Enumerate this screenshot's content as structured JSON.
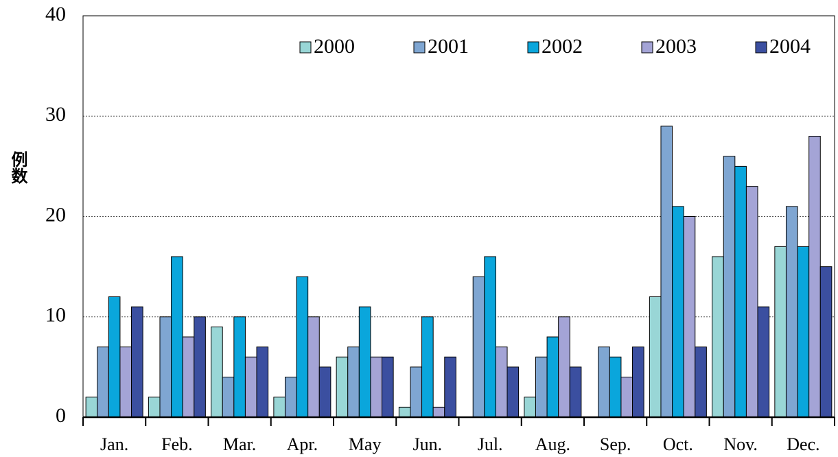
{
  "chart_data": {
    "type": "bar",
    "y_label": "例数",
    "categories": [
      "Jan.",
      "Feb.",
      "Mar.",
      "Apr.",
      "May",
      "Jun.",
      "Jul.",
      "Aug.",
      "Sep.",
      "Oct.",
      "Nov.",
      "Dec."
    ],
    "series": [
      {
        "name": "2000",
        "color": "#99d6d6",
        "values": [
          2,
          2,
          9,
          2,
          6,
          1,
          0,
          2,
          0,
          12,
          16,
          17
        ]
      },
      {
        "name": "2001",
        "color": "#7fa6d2",
        "values": [
          7,
          10,
          4,
          4,
          7,
          5,
          14,
          6,
          7,
          29,
          26,
          21
        ]
      },
      {
        "name": "2002",
        "color": "#0aa6dc",
        "values": [
          12,
          16,
          10,
          14,
          11,
          10,
          16,
          8,
          6,
          21,
          25,
          17
        ]
      },
      {
        "name": "2003",
        "color": "#a4a4d6",
        "values": [
          7,
          8,
          6,
          10,
          6,
          1,
          7,
          10,
          4,
          20,
          23,
          28
        ]
      },
      {
        "name": "2004",
        "color": "#3b4fa0",
        "values": [
          11,
          10,
          7,
          5,
          6,
          6,
          5,
          5,
          7,
          7,
          11,
          15
        ]
      }
    ],
    "ylim": [
      0,
      40
    ],
    "yticks": [
      0,
      10,
      20,
      30,
      40
    ],
    "grid": true
  }
}
